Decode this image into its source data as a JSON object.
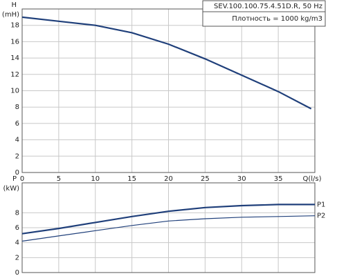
{
  "chart_data": [
    {
      "type": "line",
      "title": "SEV.100.100.75.4.51D.R, 50 Hz",
      "subtitle": "Плотность = 1000 kg/m3",
      "ylabel": "H",
      "yunit": "(mH)",
      "xlabel": "Q(l/s)",
      "x": [
        0,
        5,
        10,
        15,
        20,
        25,
        30,
        35,
        39.5
      ],
      "series": [
        {
          "name": "H",
          "color": "#1f3f7a",
          "values": [
            19.0,
            18.5,
            18.0,
            17.1,
            15.7,
            13.9,
            11.9,
            9.9,
            7.8
          ]
        }
      ],
      "xlim": [
        0,
        40
      ],
      "xticks": [
        0,
        5,
        10,
        15,
        20,
        25,
        30,
        35
      ],
      "ylim": [
        0,
        20
      ],
      "yticks": [
        0,
        2,
        4,
        6,
        8,
        10,
        12,
        14,
        16,
        18
      ],
      "grid": true
    },
    {
      "type": "line",
      "ylabel": "P",
      "yunit": "(kW)",
      "x": [
        0,
        5,
        10,
        15,
        20,
        25,
        30,
        35,
        40
      ],
      "series": [
        {
          "name": "P1",
          "color": "#1f3f7a",
          "values": [
            5.2,
            5.9,
            6.7,
            7.5,
            8.2,
            8.7,
            8.95,
            9.1,
            9.1
          ]
        },
        {
          "name": "P2",
          "color": "#1f3f7a",
          "values": [
            4.2,
            4.9,
            5.6,
            6.3,
            6.9,
            7.2,
            7.4,
            7.5,
            7.6
          ]
        }
      ],
      "xlim": [
        0,
        40
      ],
      "ylim": [
        0,
        12
      ],
      "yticks": [
        0,
        2,
        4,
        6,
        8
      ],
      "grid": true
    }
  ]
}
